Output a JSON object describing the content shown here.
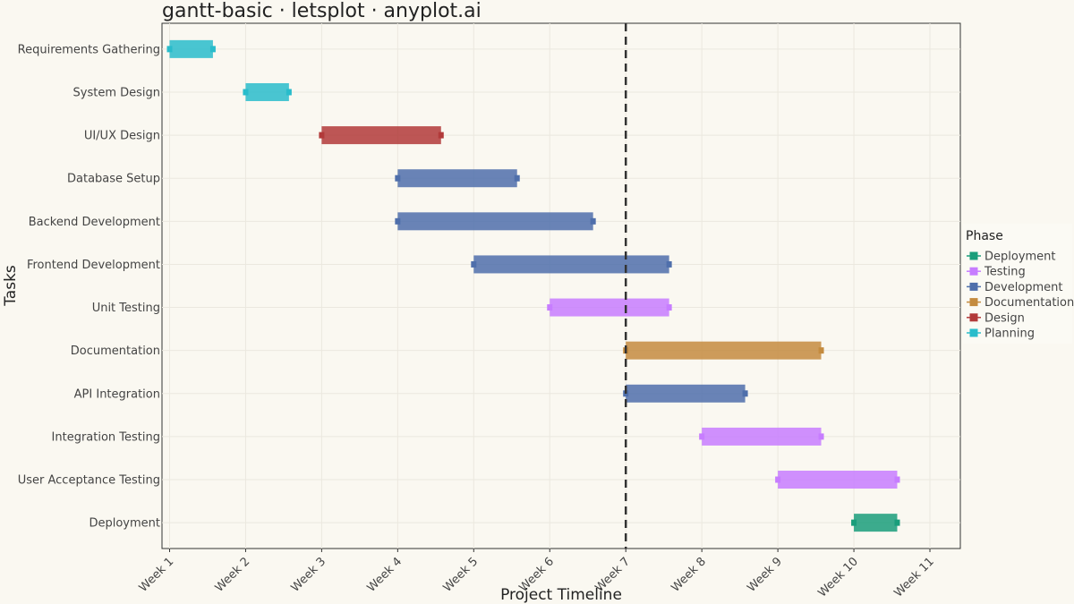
{
  "chart_data": {
    "type": "bar",
    "orientation": "horizontal",
    "title": "gantt-basic · letsplot · anyplot.ai",
    "xlabel": "Project Timeline",
    "ylabel": "Tasks",
    "xlim": [
      0.9,
      11.4
    ],
    "x_ticks": [
      {
        "value": 1,
        "label": "Week 1"
      },
      {
        "value": 2,
        "label": "Week 2"
      },
      {
        "value": 3,
        "label": "Week 3"
      },
      {
        "value": 4,
        "label": "Week 4"
      },
      {
        "value": 5,
        "label": "Week 5"
      },
      {
        "value": 6,
        "label": "Week 6"
      },
      {
        "value": 7,
        "label": "Week 7"
      },
      {
        "value": 8,
        "label": "Week 8"
      },
      {
        "value": 9,
        "label": "Week 9"
      },
      {
        "value": 10,
        "label": "Week 10"
      },
      {
        "value": 11,
        "label": "Week 11"
      }
    ],
    "reference_line": {
      "x": 7,
      "style": "dashed"
    },
    "grid": true,
    "legend": {
      "title": "Phase",
      "position": "right",
      "entries": [
        {
          "name": "Deployment",
          "color": "#1a9e7b"
        },
        {
          "name": "Testing",
          "color": "#c77dff"
        },
        {
          "name": "Development",
          "color": "#4f6fab"
        },
        {
          "name": "Documentation",
          "color": "#c48b3f"
        },
        {
          "name": "Design",
          "color": "#b23a3a"
        },
        {
          "name": "Planning",
          "color": "#29bccb"
        }
      ]
    },
    "tasks": [
      {
        "name": "Requirements Gathering",
        "phase": "Planning",
        "start": 1,
        "end": 1.57
      },
      {
        "name": "System Design",
        "phase": "Planning",
        "start": 2,
        "end": 2.57
      },
      {
        "name": "UI/UX Design",
        "phase": "Design",
        "start": 3,
        "end": 4.57
      },
      {
        "name": "Database Setup",
        "phase": "Development",
        "start": 4,
        "end": 5.57
      },
      {
        "name": "Backend Development",
        "phase": "Development",
        "start": 4,
        "end": 6.57
      },
      {
        "name": "Frontend Development",
        "phase": "Development",
        "start": 5,
        "end": 7.57
      },
      {
        "name": "Unit Testing",
        "phase": "Testing",
        "start": 6,
        "end": 7.57
      },
      {
        "name": "Documentation",
        "phase": "Documentation",
        "start": 7,
        "end": 9.57
      },
      {
        "name": "API Integration",
        "phase": "Development",
        "start": 7,
        "end": 8.57
      },
      {
        "name": "Integration Testing",
        "phase": "Testing",
        "start": 8,
        "end": 9.57
      },
      {
        "name": "User Acceptance Testing",
        "phase": "Testing",
        "start": 9,
        "end": 10.57
      },
      {
        "name": "Deployment",
        "phase": "Deployment",
        "start": 10,
        "end": 10.57
      }
    ]
  }
}
